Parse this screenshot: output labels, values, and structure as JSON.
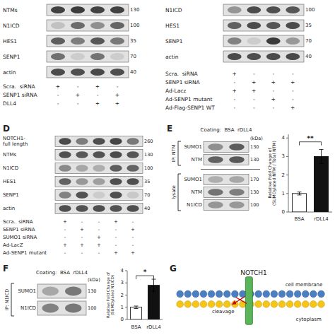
{
  "chart_data": [
    {
      "type": "blot",
      "bands": [
        {
          "name": "NTMs",
          "mw": "130",
          "values": [
            0.88,
            0.9,
            0.87,
            0.88
          ]
        },
        {
          "name": "N1ICD",
          "mw": "100",
          "values": [
            0.18,
            0.65,
            0.45,
            0.68
          ]
        },
        {
          "name": "HES1",
          "mw": "35",
          "values": [
            0.72,
            0.55,
            0.76,
            0.58
          ]
        },
        {
          "name": "SENP1",
          "mw": "70",
          "values": [
            0.62,
            0.12,
            0.6,
            0.12
          ]
        },
        {
          "name": "actin",
          "mw": "40",
          "values": [
            0.82,
            0.8,
            0.83,
            0.81
          ]
        }
      ],
      "conditions": [
        {
          "name": "Scra.  siRNA",
          "values": [
            "+",
            "-",
            "+",
            "-"
          ]
        },
        {
          "name": "SENP1 siRNA",
          "values": [
            "-",
            "+",
            "-",
            "+"
          ]
        },
        {
          "name": "DLL4",
          "values": [
            "-",
            "-",
            "+",
            "+"
          ]
        }
      ]
    },
    {
      "type": "blot",
      "bands": [
        {
          "name": "N1ICD",
          "mw": "100",
          "values": [
            0.42,
            0.82,
            0.8,
            0.76
          ]
        },
        {
          "name": "HES1",
          "mw": "35",
          "values": [
            0.7,
            0.82,
            0.76,
            0.82
          ]
        },
        {
          "name": "SENP1",
          "mw": "70",
          "values": [
            0.52,
            0.12,
            0.92,
            0.4
          ]
        },
        {
          "name": "actin",
          "mw": "40",
          "values": [
            0.82,
            0.8,
            0.82,
            0.83
          ]
        }
      ],
      "conditions": [
        {
          "name": "Scra.  siRNA",
          "values": [
            "+",
            "-",
            "-",
            "-"
          ]
        },
        {
          "name": "SENP1 siRNA",
          "values": [
            "-",
            "+",
            "+",
            "+"
          ]
        },
        {
          "name": "Ad-Lacz",
          "values": [
            "+",
            "+",
            "-",
            "-"
          ]
        },
        {
          "name": "Ad-SENP1 mutant",
          "values": [
            "-",
            "-",
            "+",
            "-"
          ]
        },
        {
          "name": "Ad-Flag-SENP1 WT",
          "values": [
            "-",
            "-",
            "-",
            "+"
          ]
        }
      ]
    },
    {
      "type": "blot",
      "label": "D",
      "bands": [
        {
          "name": "NOTCH1-\nfull length",
          "mw": "260",
          "values": [
            0.82,
            0.55,
            0.8,
            0.85,
            0.58
          ]
        },
        {
          "name": "NTMs",
          "mw": "130",
          "values": [
            0.8,
            0.75,
            0.78,
            0.82,
            0.77
          ]
        },
        {
          "name": "N1ICD",
          "mw": "100",
          "values": [
            0.48,
            0.32,
            0.28,
            0.72,
            0.68
          ]
        },
        {
          "name": "HES1",
          "mw": "35",
          "values": [
            0.7,
            0.4,
            0.36,
            0.8,
            0.8
          ]
        },
        {
          "name": "SENP1",
          "mw": "70",
          "values": [
            0.52,
            0.78,
            0.12,
            0.8,
            0.14
          ]
        },
        {
          "name": "actin",
          "mw": "40",
          "values": [
            0.8,
            0.78,
            0.8,
            0.78,
            0.8
          ]
        }
      ],
      "conditions": [
        {
          "name": "Scra.  siRNA",
          "values": [
            "+",
            "-",
            "-",
            "+",
            "-"
          ]
        },
        {
          "name": "SENP1 siRNA",
          "values": [
            "-",
            "+",
            "-",
            "-",
            "+"
          ]
        },
        {
          "name": "SUMO1 siRNA",
          "values": [
            "-",
            "-",
            "+",
            "-",
            "-"
          ]
        },
        {
          "name": "Ad-LacZ",
          "values": [
            "+",
            "+",
            "+",
            "-",
            "-"
          ]
        },
        {
          "name": "Ad-SENP1 mutant",
          "values": [
            "-",
            "-",
            "-",
            "+",
            "+"
          ]
        }
      ]
    },
    {
      "type": "blot",
      "label": "E",
      "title": "Coating:  BSA  rDLL4",
      "unit_label": "(kDa)",
      "groups": [
        {
          "name": "IP: NTM",
          "bands": [
            {
              "name": "SUMO1",
              "mw": "130",
              "values": [
                0.45,
                0.72
              ]
            },
            {
              "name": "NTM",
              "mw": "130",
              "values": [
                0.7,
                0.75
              ]
            }
          ]
        },
        {
          "name": "lysate",
          "bands": [
            {
              "name": "SUMO1",
              "mw": "170",
              "values": [
                0.28,
                0.32
              ]
            },
            {
              "name": "NTM",
              "mw": "130",
              "values": [
                0.6,
                0.55
              ]
            },
            {
              "name": "N1ICD",
              "mw": "100",
              "values": [
                0.42,
                0.4
              ]
            }
          ]
        }
      ]
    },
    {
      "type": "bar",
      "categories": [
        "BSA",
        "rDLL4"
      ],
      "values": [
        1.0,
        3.0
      ],
      "errors": [
        0.08,
        0.38
      ],
      "colors": [
        "#ffffff",
        "#111111"
      ],
      "y_label": "Relative Fold Change of\n(SUMOylated NTM / Total NTM)",
      "ylim": [
        0,
        4.2
      ],
      "yticks": [
        0,
        1,
        2,
        3,
        4
      ],
      "annotations": [
        {
          "text": "**",
          "y": 3.6
        }
      ]
    },
    {
      "type": "blot",
      "label": "F",
      "title": "Coating:  BSA  rDLL4",
      "unit_label": "(kDa)",
      "groups": [
        {
          "name": "IP: N1ICD",
          "bands": [
            {
              "name": "SUMO1",
              "mw": "130",
              "values": [
                0.32,
                0.58
              ]
            },
            {
              "name": "N1ICD",
              "mw": "100",
              "values": [
                0.52,
                0.58
              ]
            }
          ]
        }
      ]
    },
    {
      "type": "bar",
      "categories": [
        "BSA",
        "rDLL4"
      ],
      "values": [
        1.0,
        2.8
      ],
      "errors": [
        0.1,
        0.5
      ],
      "colors": [
        "#ffffff",
        "#111111"
      ],
      "y_label": "Relative Fold Change of\n(SUMOylated N1ICD)",
      "ylim": [
        0,
        4.0
      ],
      "yticks": [
        0,
        1,
        2,
        3,
        4
      ],
      "annotations": [
        {
          "text": "*",
          "y": 3.3
        }
      ]
    },
    {
      "type": "diagram",
      "label": "G",
      "title": "NOTCH1",
      "annotations": [
        "cleavage",
        "cell membrane",
        "cytoplasm"
      ],
      "colors": {
        "membrane_outer": "#4a7fc1",
        "membrane_outer_edge": "#2a5090",
        "membrane_inner": "#f5c518",
        "membrane_inner_edge": "#b08800",
        "notch": "#5ab55a",
        "notch_edge": "#2d7a2d",
        "cleavage": "#cc0000"
      }
    }
  ]
}
